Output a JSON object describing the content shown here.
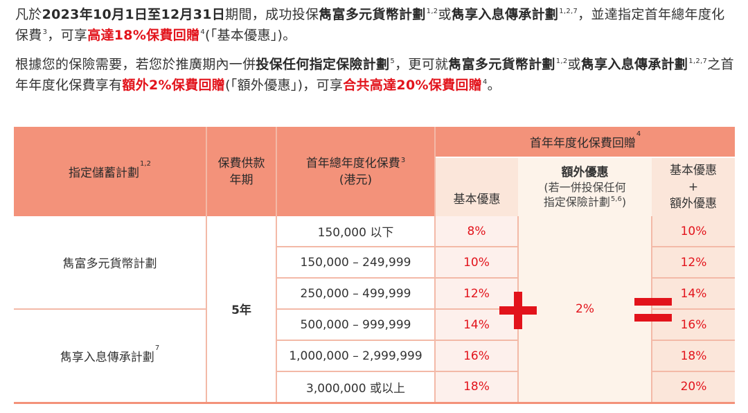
{
  "intro": {
    "p1": {
      "a": "凡於",
      "period": "2023年10月1日至12月31日",
      "b": "期間，成功投保",
      "plan1": "雋富多元貨幣計劃",
      "plan1_sup": "1,2",
      "c": "或",
      "plan2": "雋享入息傳承計劃",
      "plan2_sup": "1,2,7",
      "d": "，並達指定首年總年度化保費",
      "d_sup": "3",
      "e": "，可享",
      "highlight": "高達18%保費回贈",
      "highlight_sup": "4",
      "f": "(「基本優惠」)。"
    },
    "p2": {
      "a": "根據您的保險需要，若您於推廣期內一併",
      "bold1": "投保任何指定保險計劃",
      "bold1_sup": "5",
      "b": "，更可就",
      "plan1": "雋富多元貨幣計劃",
      "plan1_sup": "1,2",
      "c": "或",
      "plan2": "雋享入息傳承計劃",
      "plan2_sup": "1,2,7",
      "d": "之首年年度化保費享有",
      "red1": "額外2%保費回贈",
      "e": "(「額外優惠」)，可享",
      "red2": "合共高達20%保費回贈",
      "red2_sup": "4",
      "f": "。"
    }
  },
  "table": {
    "headers": {
      "plan": "指定儲蓄計劃",
      "plan_sup": "1,2",
      "term_line1": "保費供款",
      "term_line2": "年期",
      "premium_line1": "首年總年度化保費",
      "premium_sup": "3",
      "premium_line2": "(港元)",
      "rebate": "首年年度化保費回贈",
      "rebate_sup": "4",
      "basic": "基本優惠",
      "extra_line1": "額外優惠",
      "extra_line2": "(若一併投保任何",
      "extra_line3": "指定保險計劃",
      "extra_sup": "5,6",
      "extra_line3_end": ")",
      "sum_line1": "基本優惠",
      "sum_line2": "+",
      "sum_line3": "額外優惠"
    },
    "plans": [
      {
        "name": "雋富多元貨幣計劃",
        "sup": ""
      },
      {
        "name": "雋享入息傳承計劃",
        "sup": "7"
      }
    ],
    "term": "5年",
    "extra": "2%",
    "rows": [
      {
        "band": "150,000 以下",
        "basic": "8%",
        "total": "10%"
      },
      {
        "band": "150,000 – 249,999",
        "basic": "10%",
        "total": "12%"
      },
      {
        "band": "250,000 – 499,999",
        "basic": "12%",
        "total": "14%"
      },
      {
        "band": "500,000 – 999,999",
        "basic": "14%",
        "total": "16%"
      },
      {
        "band": "1,000,000 – 2,999,999",
        "basic": "16%",
        "total": "18%"
      },
      {
        "band": "3,000,000 或以上",
        "basic": "18%",
        "total": "20%"
      }
    ],
    "colors": {
      "header": "#f3927a",
      "accent": "#e2131b",
      "extra_bg": "#fdf3ea",
      "sum_bg": "#fbe6da"
    }
  }
}
